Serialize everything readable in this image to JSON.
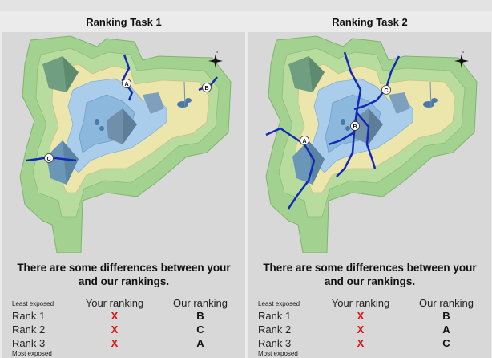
{
  "panels": [
    {
      "title": "Ranking Task 1",
      "message_line1": "There are some differences between your",
      "message_line2": "and our rankings.",
      "least_label": "Least exposed",
      "most_label": "Most exposed",
      "your_header": "Your ranking",
      "our_header": "Our ranking",
      "rows": [
        {
          "rank": "Rank 1",
          "yours": "X",
          "ours": "B"
        },
        {
          "rank": "Rank 2",
          "yours": "X",
          "ours": "C"
        },
        {
          "rank": "Rank 3",
          "yours": "X",
          "ours": "A"
        }
      ],
      "markers": [
        "A",
        "B",
        "C"
      ],
      "north_label": "N"
    },
    {
      "title": "Ranking Task 2",
      "message_line1": "There are some differences between your",
      "message_line2": "and our rankings.",
      "least_label": "Least exposed",
      "most_label": "Most exposed",
      "your_header": "Your ranking",
      "our_header": "Our ranking",
      "rows": [
        {
          "rank": "Rank 1",
          "yours": "X",
          "ours": "B"
        },
        {
          "rank": "Rank 2",
          "yours": "X",
          "ours": "A"
        },
        {
          "rank": "Rank 3",
          "yours": "X",
          "ours": "C"
        }
      ],
      "markers": [
        "A",
        "B",
        "C"
      ],
      "north_label": "N"
    }
  ],
  "colors": {
    "wrong": "#e01010",
    "river": "#1428b8",
    "green": "#9fd08e",
    "yellow": "#ede9b0",
    "water": "#9cc7e8"
  }
}
